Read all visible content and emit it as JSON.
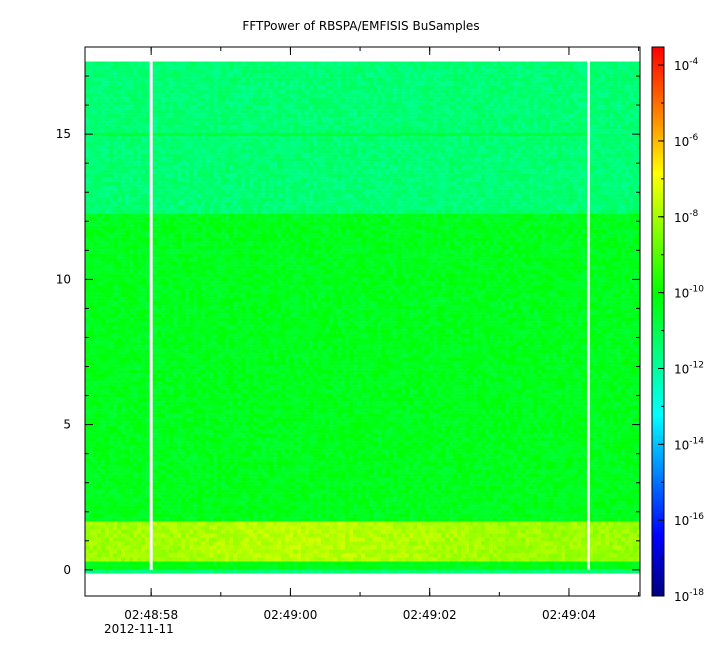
{
  "chart_data": {
    "type": "heatmap",
    "title": "FFTPower of RBSPA/EMFISIS  BuSamples",
    "xlabel": "",
    "ylabel": "",
    "x_tick_labels": [
      "02:48:58",
      "02:49:00",
      "02:49:02",
      "02:49:04"
    ],
    "x_date_label": "2012-11-11",
    "x_range_seconds": [
      "02:48:57.05",
      "02:49:05.02"
    ],
    "y_ticks": [
      0,
      5,
      10,
      15
    ],
    "y_tick_labels": [
      "0",
      "5",
      "10",
      "15"
    ],
    "ylim": [
      -0.9,
      18.0
    ],
    "data_y_extent": [
      0,
      17.5
    ],
    "gap_times": [
      "02:48:58.00",
      "02:49:04.28"
    ],
    "colorbar": {
      "scale": "log",
      "range": [
        1e-18,
        0.0003
      ],
      "tick_mantissa": "10",
      "tick_exponents": [
        "-4",
        "-6",
        "-8",
        "-10",
        "-12",
        "-14",
        "-16",
        "-18"
      ],
      "colormap": "rainbow",
      "colors": [
        "#00007f",
        "#0000ff",
        "#0080ff",
        "#00ffff",
        "#00ff80",
        "#00ff00",
        "#80ff00",
        "#ffff00",
        "#ff8000",
        "#ff0000"
      ]
    },
    "bands": [
      {
        "y_range": [
          0,
          0.25
        ],
        "typical_log10_power": -10.2
      },
      {
        "y_range": [
          0.25,
          1.6
        ],
        "typical_log10_power": -8.0
      },
      {
        "y_range": [
          1.6,
          12.3
        ],
        "typical_log10_power": -10.3
      },
      {
        "y_range": [
          12.3,
          17.5
        ],
        "typical_log10_power": -11.4
      }
    ],
    "line_feature": {
      "y": 15.0,
      "log10_power": -10.6
    }
  }
}
